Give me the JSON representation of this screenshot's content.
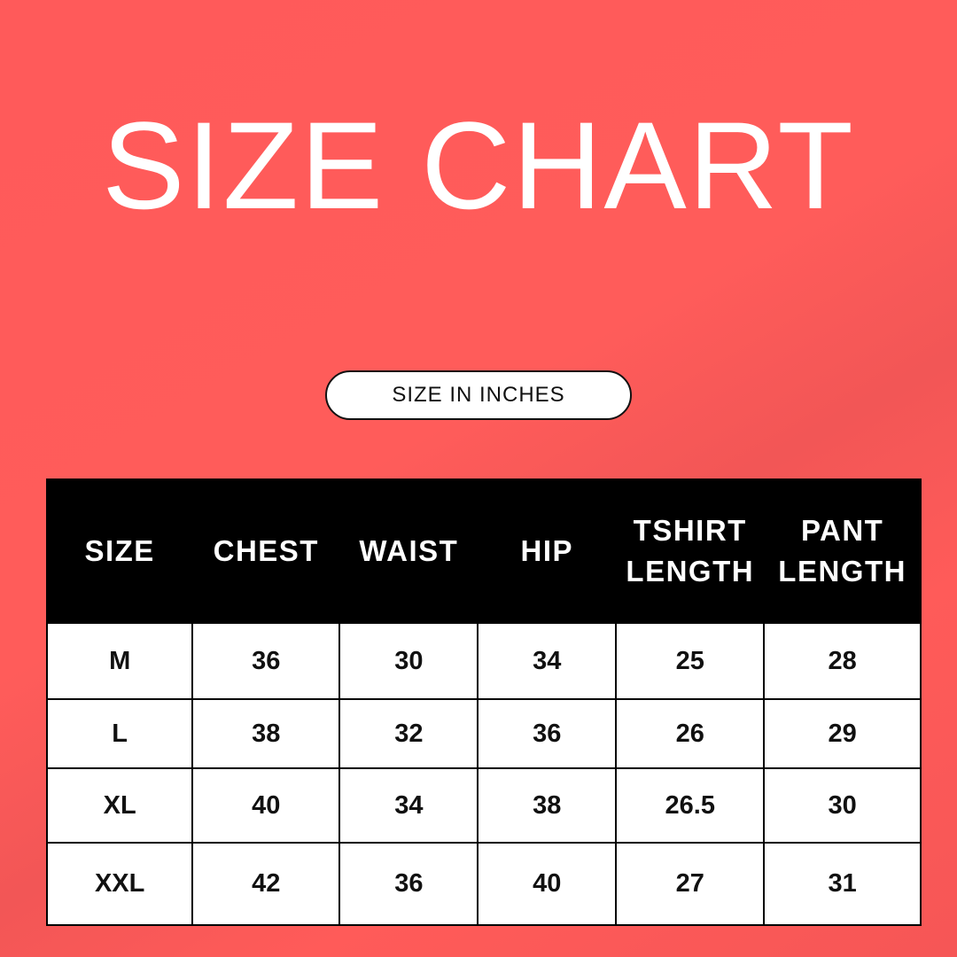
{
  "title": "SIZE CHART",
  "unit_label": "SIZE IN INCHES",
  "colors": {
    "background": "#ff5a5a",
    "header_bg": "#000000",
    "header_text": "#ffffff",
    "cell_bg": "#ffffff"
  },
  "chart_data": {
    "type": "table",
    "columns": [
      "SIZE",
      "CHEST",
      "WAIST",
      "HIP",
      "TSHIRT LENGTH",
      "PANT LENGTH"
    ],
    "rows": [
      [
        "M",
        "36",
        "30",
        "34",
        "25",
        "28"
      ],
      [
        "L",
        "38",
        "32",
        "36",
        "26",
        "29"
      ],
      [
        "XL",
        "40",
        "34",
        "38",
        "26.5",
        "30"
      ],
      [
        "XXL",
        "42",
        "36",
        "40",
        "27",
        "31"
      ]
    ]
  }
}
